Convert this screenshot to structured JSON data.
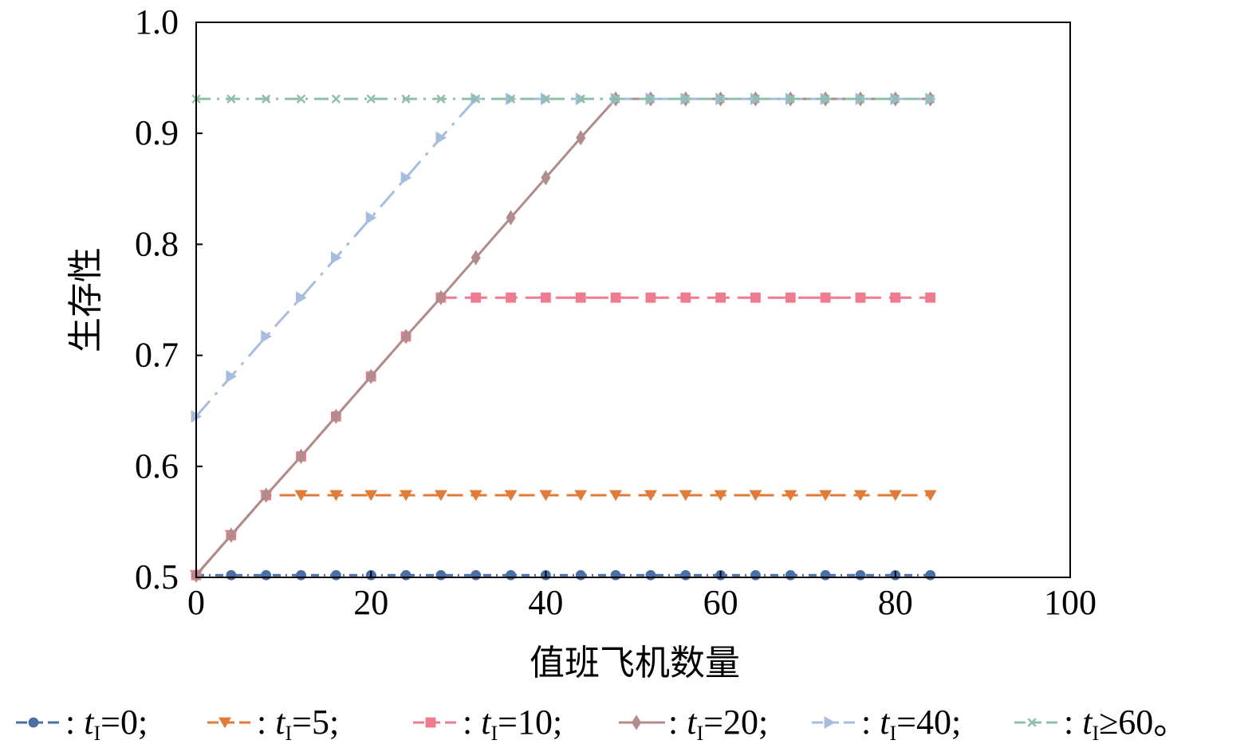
{
  "chart_data": {
    "type": "line",
    "xlabel": "值班飞机数量",
    "ylabel": "生存性",
    "xlim": [
      0,
      100
    ],
    "ylim": [
      0.5,
      1.0
    ],
    "xticks": [
      "0",
      "20",
      "40",
      "60",
      "80",
      "100"
    ],
    "yticks": [
      "0.5",
      "0.6",
      "0.7",
      "0.8",
      "0.9",
      "1.0"
    ],
    "grid": false,
    "legend_position": "bottom",
    "series": [
      {
        "name": "tI=0",
        "legend": {
          "prefix": ": ",
          "var": "t",
          "sub": "I",
          "rest": "=0;"
        },
        "color": "#4a6fa5",
        "marker": "circle",
        "dash": "10,6,2,6",
        "x": [
          0,
          4,
          8,
          12,
          16,
          20,
          24,
          28,
          32,
          36,
          40,
          44,
          48,
          52,
          56,
          60,
          64,
          68,
          72,
          76,
          80,
          84
        ],
        "y": [
          0.502,
          0.502,
          0.502,
          0.502,
          0.502,
          0.502,
          0.502,
          0.502,
          0.502,
          0.502,
          0.502,
          0.502,
          0.502,
          0.502,
          0.502,
          0.502,
          0.502,
          0.502,
          0.502,
          0.502,
          0.502,
          0.502
        ]
      },
      {
        "name": "tI=5",
        "legend": {
          "prefix": ": ",
          "var": "t",
          "sub": "I",
          "rest": "=5;"
        },
        "color": "#e07b39",
        "marker": "triangle-down",
        "dash": "20,10",
        "x": [
          0,
          4,
          8,
          12,
          16,
          20,
          24,
          28,
          32,
          36,
          40,
          44,
          48,
          52,
          56,
          60,
          64,
          68,
          72,
          76,
          80,
          84
        ],
        "y": [
          0.502,
          0.538,
          0.574,
          0.574,
          0.574,
          0.574,
          0.574,
          0.574,
          0.574,
          0.574,
          0.574,
          0.574,
          0.574,
          0.574,
          0.574,
          0.574,
          0.574,
          0.574,
          0.574,
          0.574,
          0.574,
          0.574
        ]
      },
      {
        "name": "tI=10",
        "legend": {
          "prefix": ": ",
          "var": "t",
          "sub": "I",
          "rest": "=10;"
        },
        "color": "#ee7b8f",
        "marker": "square",
        "dash": "28,10",
        "x": [
          0,
          4,
          8,
          12,
          16,
          20,
          24,
          28,
          32,
          36,
          40,
          44,
          48,
          52,
          56,
          60,
          64,
          68,
          72,
          76,
          80,
          84
        ],
        "y": [
          0.502,
          0.538,
          0.574,
          0.609,
          0.645,
          0.681,
          0.717,
          0.752,
          0.752,
          0.752,
          0.752,
          0.752,
          0.752,
          0.752,
          0.752,
          0.752,
          0.752,
          0.752,
          0.752,
          0.752,
          0.752,
          0.752
        ]
      },
      {
        "name": "tI=20",
        "legend": {
          "prefix": ": ",
          "var": "t",
          "sub": "I",
          "rest": "=20;"
        },
        "color": "#b28b8b",
        "marker": "diamond",
        "dash": "",
        "x": [
          0,
          4,
          8,
          12,
          16,
          20,
          24,
          28,
          32,
          36,
          40,
          44,
          48,
          52,
          56,
          60,
          64,
          68,
          72,
          76,
          80,
          84
        ],
        "y": [
          0.502,
          0.538,
          0.574,
          0.609,
          0.645,
          0.681,
          0.717,
          0.752,
          0.788,
          0.824,
          0.86,
          0.896,
          0.931,
          0.931,
          0.931,
          0.931,
          0.931,
          0.931,
          0.931,
          0.931,
          0.931,
          0.931
        ]
      },
      {
        "name": "tI=40",
        "legend": {
          "prefix": ": ",
          "var": "t",
          "sub": "I",
          "rest": "=40;"
        },
        "color": "#a7bde0",
        "marker": "triangle-right",
        "dash": "26,10,4,10",
        "x": [
          0,
          4,
          8,
          12,
          16,
          20,
          24,
          28,
          32,
          36,
          40,
          44,
          48,
          52,
          56,
          60,
          64,
          68,
          72,
          76,
          80,
          84
        ],
        "y": [
          0.645,
          0.681,
          0.717,
          0.752,
          0.788,
          0.824,
          0.86,
          0.896,
          0.931,
          0.931,
          0.931,
          0.931,
          0.931,
          0.931,
          0.931,
          0.931,
          0.931,
          0.931,
          0.931,
          0.931,
          0.931,
          0.931
        ]
      },
      {
        "name": "tI≥60",
        "legend": {
          "prefix": ": ",
          "var": "t",
          "sub": "I",
          "rest": "≥60。"
        },
        "color": "#8fbfaa",
        "marker": "x",
        "dash": "18,8,3,8",
        "x": [
          0,
          4,
          8,
          12,
          16,
          20,
          24,
          28,
          32,
          36,
          40,
          44,
          48,
          52,
          56,
          60,
          64,
          68,
          72,
          76,
          80,
          84
        ],
        "y": [
          0.931,
          0.931,
          0.931,
          0.931,
          0.931,
          0.931,
          0.931,
          0.931,
          0.931,
          0.931,
          0.931,
          0.931,
          0.931,
          0.931,
          0.931,
          0.931,
          0.931,
          0.931,
          0.931,
          0.931,
          0.931,
          0.931
        ]
      }
    ]
  }
}
